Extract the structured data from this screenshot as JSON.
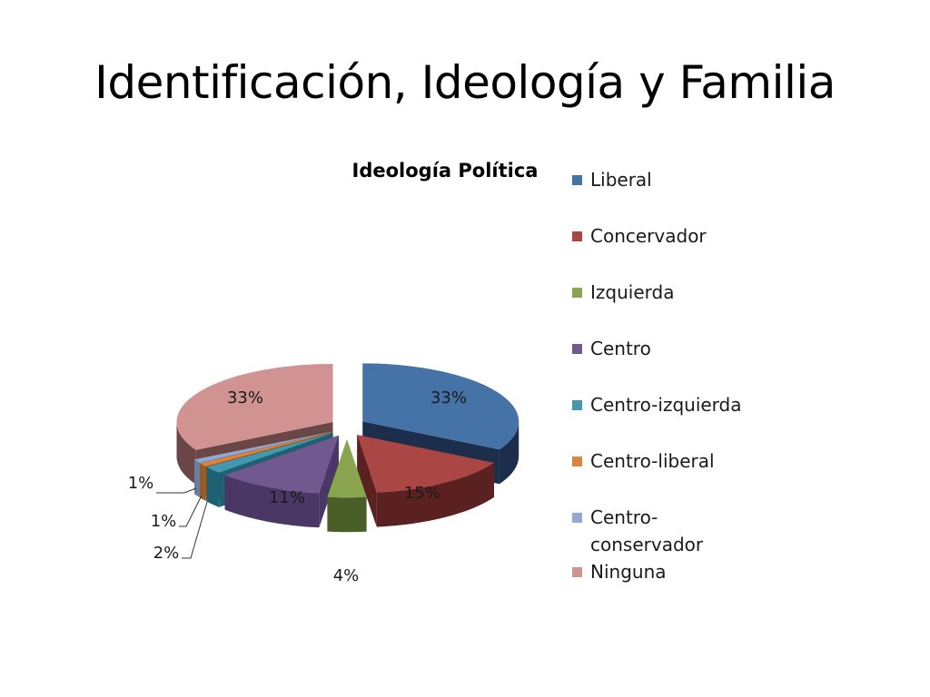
{
  "slide": {
    "title": "Identificación, Ideología y Familia"
  },
  "chart_data": {
    "type": "pie",
    "title": "Ideología Política",
    "legend_position": "right",
    "categories": [
      "Liberal",
      "Concervador",
      "Izquierda",
      "Centro",
      "Centro-izquierda",
      "Centro-liberal",
      "Centro-conservador",
      "Ninguna"
    ],
    "legend_labels": [
      "Liberal",
      "Concervador",
      "Izquierda",
      "Centro",
      "Centro-izquierda",
      "Centro-liberal",
      "Centro-\nconservador",
      "Ninguna"
    ],
    "values": [
      33,
      15,
      4,
      11,
      2,
      1,
      1,
      33
    ],
    "data_labels": [
      "33%",
      "15%",
      "4%",
      "11%",
      "2%",
      "1%",
      "1%",
      "33%"
    ],
    "colors": [
      "#4573A7",
      "#AA4643",
      "#89A54E",
      "#71588F",
      "#4198AF",
      "#DB843D",
      "#93A9CF",
      "#D19392"
    ],
    "side_colors": [
      "#1C2E4B",
      "#5A2120",
      "#4A5E2A",
      "#4A3766",
      "#1F6072",
      "#9A5A24",
      "#6A7DA0",
      "#6B4646"
    ]
  }
}
